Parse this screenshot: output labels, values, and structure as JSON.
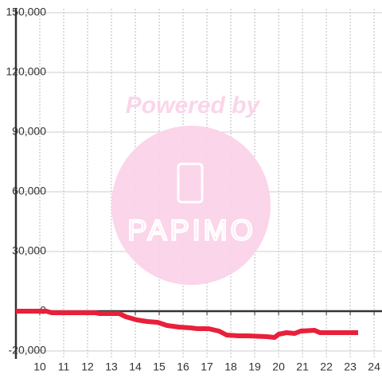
{
  "chart_data": {
    "type": "line",
    "watermark": {
      "line1": "Powered by",
      "line2": "PAPIMO"
    },
    "x": [
      9,
      10.27,
      10.5,
      12.33,
      12.5,
      13.33,
      13.6,
      14.07,
      14.5,
      14.93,
      15.33,
      15.83,
      16.33,
      16.6,
      17.07,
      17.5,
      17.83,
      18.33,
      18.73,
      19.5,
      19.83,
      20,
      20.33,
      20.67,
      20.93,
      21.5,
      21.73,
      23.33
    ],
    "series": [
      {
        "color": "#e8203a",
        "values": [
          0,
          0,
          -800,
          -800,
          -1200,
          -1200,
          -2800,
          -4400,
          -5200,
          -5600,
          -7200,
          -8000,
          -8400,
          -8800,
          -8800,
          -10000,
          -12000,
          -12400,
          -12400,
          -12800,
          -13200,
          -11600,
          -10800,
          -11200,
          -10000,
          -9600,
          -10800,
          -10800
        ]
      }
    ],
    "xlim": [
      9,
      24.33
    ],
    "xticks": [
      10,
      11,
      12,
      13,
      14,
      15,
      16,
      17,
      18,
      19,
      20,
      21,
      22,
      23,
      24
    ],
    "ylim": [
      -24000,
      152000
    ],
    "yticks": [
      {
        "value": -20000,
        "label": "-20,000"
      },
      0,
      {
        "value": 30000,
        "label": "30,000"
      },
      {
        "value": 60000,
        "label": "60,000"
      },
      {
        "value": 90000,
        "label": "90,000"
      },
      {
        "value": 120000,
        "label": "120,000"
      },
      {
        "value": 150000,
        "label": "150,000"
      }
    ],
    "grid": true
  }
}
